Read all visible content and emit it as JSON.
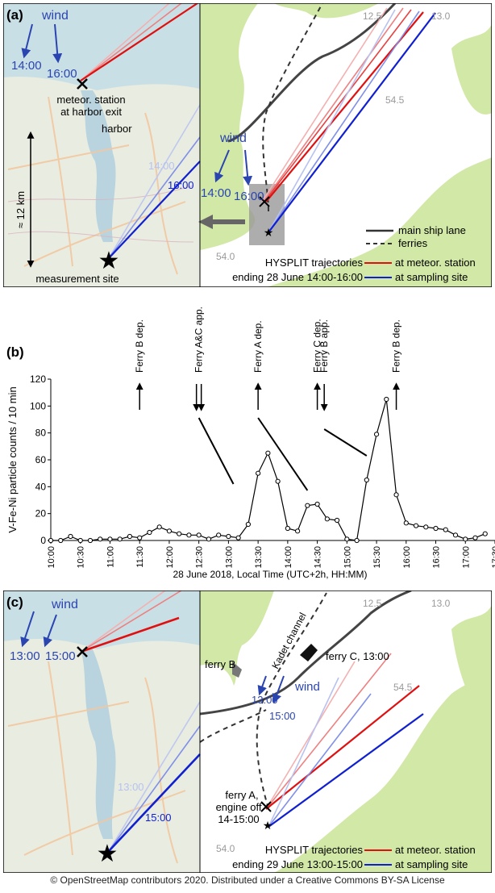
{
  "panel_a": {
    "label": "(a)",
    "wind_label": "wind",
    "wind_time_1": "14:00",
    "wind_time_2": "16:00",
    "station_label_1": "meteor. station",
    "station_label_2": "at harbor exit",
    "harbor_label": "harbor",
    "scale_label": "≈ 12 km",
    "traj_time_light": "14:00",
    "traj_time_dark": "16:00",
    "site_label": "measurement site",
    "lat_1": "54.5",
    "lat_2": "54.0",
    "lon_1": "12.5",
    "lon_2": "13.0",
    "right_wind_label": "wind",
    "right_wind_time_1": "14:00",
    "right_wind_time_2": "16:00",
    "legend_ship_lane": "main ship lane",
    "legend_ferries": "ferries",
    "legend_hysplit_1": "HYSPLIT trajectories",
    "legend_hysplit_2": "ending 28 June 14:00-16:00",
    "legend_meteor": "at meteor. station",
    "legend_sampling": "at sampling site"
  },
  "panel_b": {
    "label": "(b)",
    "events": [
      {
        "text": "Ferry B dep.",
        "time": 690,
        "dir": "up"
      },
      {
        "text": "Ferry A&C app.",
        "time": 750,
        "dir": "down2"
      },
      {
        "text": "Ferry A dep.",
        "time": 810,
        "dir": "up"
      },
      {
        "text": "Ferry C dep.",
        "time": 870,
        "dir": "up"
      },
      {
        "text": "Ferry B app.",
        "time": 877,
        "dir": "down"
      },
      {
        "text": "Ferry B dep.",
        "time": 950,
        "dir": "up"
      }
    ]
  },
  "chart_data": {
    "type": "line",
    "title": "",
    "xlabel": "28 June 2018, Local Time (UTC+2h, HH:MM)",
    "ylabel": "V-Fe-Ni particle counts / 10 min",
    "ylim": [
      0,
      120
    ],
    "yticks": [
      0,
      20,
      40,
      60,
      80,
      100,
      120
    ],
    "xticks": [
      "10:00",
      "10:30",
      "11:00",
      "11:30",
      "12:00",
      "12:30",
      "13:00",
      "13:30",
      "14:00",
      "14:30",
      "15:00",
      "15:30",
      "16:00",
      "16:30",
      "17:00",
      "17:30"
    ],
    "xstart_minutes": 600,
    "step_minutes": 10,
    "values": [
      0,
      0,
      3,
      0,
      0,
      1,
      1,
      1,
      3,
      2,
      6,
      10,
      7,
      5,
      4,
      4,
      1,
      4,
      3,
      2,
      12,
      50,
      65,
      44,
      9,
      7,
      26,
      27,
      16,
      15,
      1,
      0,
      45,
      79,
      105,
      34,
      13,
      11,
      10,
      9,
      8,
      4,
      1,
      2,
      5
    ]
  },
  "panel_c": {
    "label": "(c)",
    "wind_label": "wind",
    "wind_time_1": "13:00",
    "wind_time_2": "15:00",
    "traj_time_light": "13:00",
    "traj_time_dark": "15:00",
    "lat_1": "54.5",
    "lat_2": "54.0",
    "lon_1": "12.5",
    "lon_2": "13.0",
    "ferry_b": "ferry B",
    "kadet": "Kadet channel",
    "ferry_c": "ferry C, 13:00",
    "right_wind_label": "wind",
    "right_wind_time_1": "13:00",
    "right_wind_time_2": "15:00",
    "ferry_a_1": "ferry A,",
    "ferry_a_2": "engine off",
    "ferry_a_3": "14-15:00",
    "legend_hysplit_1": "HYSPLIT trajectories",
    "legend_hysplit_2": "ending 29 June 13:00-15:00",
    "legend_meteor": "at meteor. station",
    "legend_sampling": "at sampling site"
  },
  "footer": "© OpenStreetMap contributors 2020. Distributed under a Creative Commons BY-SA License",
  "colors": {
    "sea": "#c9dfe6",
    "land_map": "#e8ecdf",
    "green_land": "#d2e8a6",
    "traj_red": "#e01010",
    "traj_blue": "#1020d0",
    "text_blue": "#2b45b0"
  }
}
